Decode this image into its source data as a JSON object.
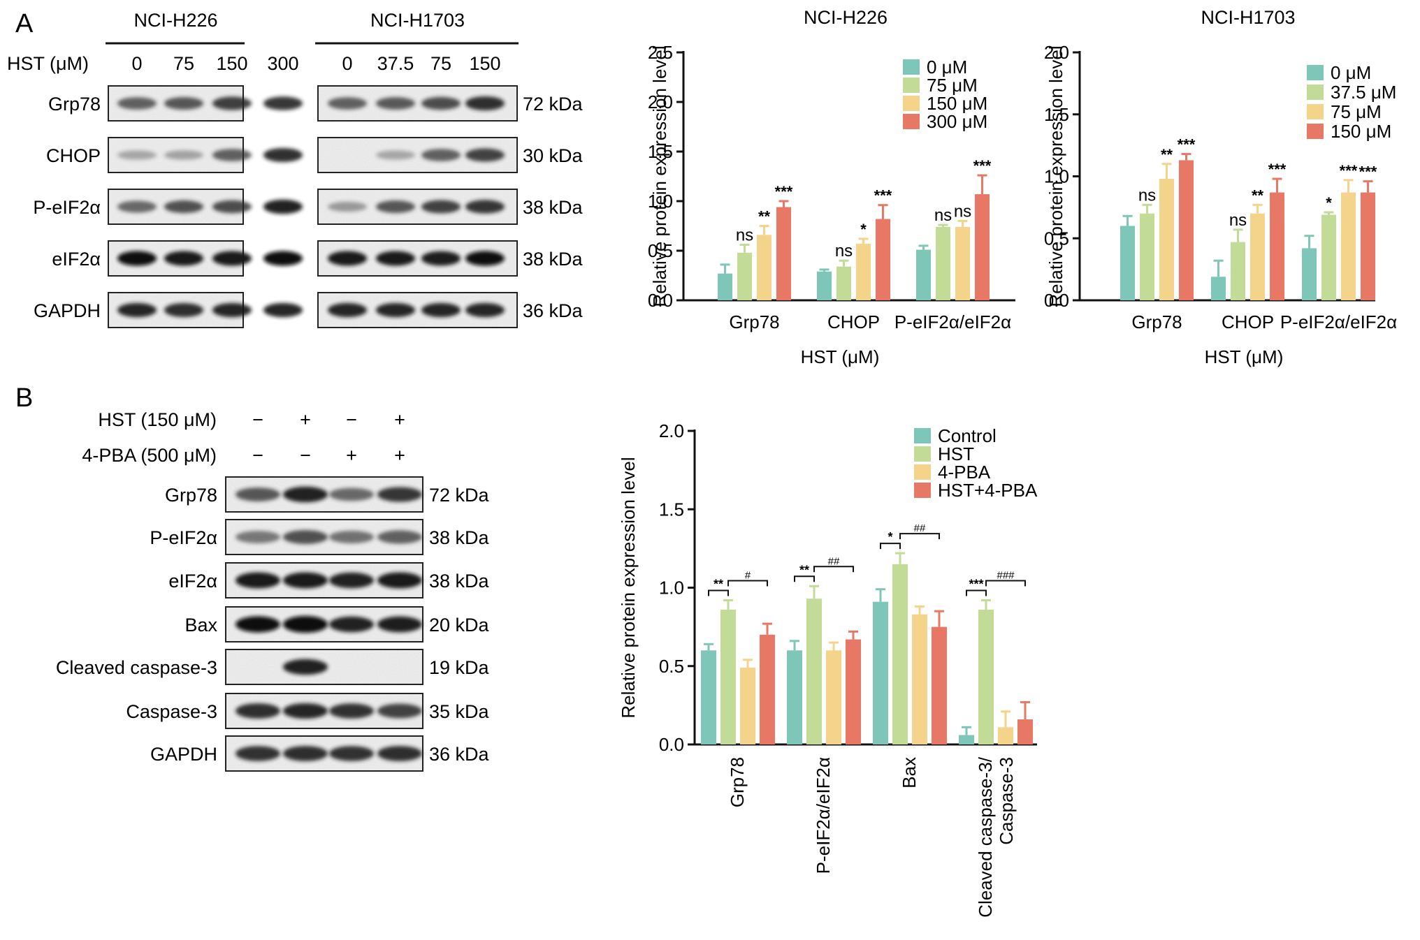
{
  "panelA": {
    "label": "A",
    "blot": {
      "cell_lines": [
        "NCI-H226",
        "NCI-H1703"
      ],
      "treatment_label": "HST (μM)",
      "doses_h226": [
        "0",
        "75",
        "150",
        "300"
      ],
      "doses_h1703": [
        "0",
        "37.5",
        "75",
        "150"
      ],
      "rows": [
        {
          "name": "Grp78",
          "kda": "72 kDa"
        },
        {
          "name": "CHOP",
          "kda": "30 kDa"
        },
        {
          "name": "P-eIF2α",
          "kda": "38 kDa"
        },
        {
          "name": "eIF2α",
          "kda": "38 kDa"
        },
        {
          "name": "GAPDH",
          "kda": "36 kDa"
        }
      ]
    }
  },
  "panelB": {
    "label": "B",
    "blot": {
      "treatments": [
        {
          "label": "HST (150 μM)",
          "signs": [
            "−",
            "+",
            "−",
            "+"
          ]
        },
        {
          "label": "4-PBA (500 μM)",
          "signs": [
            "−",
            "−",
            "+",
            "+"
          ]
        }
      ],
      "rows": [
        {
          "name": "Grp78",
          "kda": "72 kDa"
        },
        {
          "name": "P-eIF2α",
          "kda": "38 kDa"
        },
        {
          "name": "eIF2α",
          "kda": "38 kDa"
        },
        {
          "name": "Bax",
          "kda": "20 kDa"
        },
        {
          "name": "Cleaved caspase-3",
          "kda": "19 kDa"
        },
        {
          "name": "Caspase-3",
          "kda": "35 kDa"
        },
        {
          "name": "GAPDH",
          "kda": "36 kDa"
        }
      ]
    }
  },
  "chart_data": [
    {
      "type": "bar",
      "title": "NCI-H226",
      "xlabel": "HST (μM)",
      "ylabel": "Relative protein expression level",
      "ylim": [
        0,
        2.5
      ],
      "yticks": [
        "0.0",
        "0.5",
        "1.0",
        "1.5",
        "2.0",
        "2.5"
      ],
      "categories": [
        "Grp78",
        "CHOP",
        "P-eIF2α/eIF2α"
      ],
      "legend_position": "top-right",
      "series": [
        {
          "name": "0 μM",
          "color": "#7ec6b7",
          "values": [
            0.27,
            0.29,
            0.51
          ],
          "errors": [
            0.09,
            0.02,
            0.04
          ]
        },
        {
          "name": "75 μM",
          "color": "#c2dc97",
          "values": [
            0.48,
            0.34,
            0.74
          ],
          "errors": [
            0.08,
            0.06,
            0.02
          ]
        },
        {
          "name": "150 μM",
          "color": "#f4d38b",
          "values": [
            0.66,
            0.57,
            0.74
          ],
          "errors": [
            0.09,
            0.05,
            0.06
          ]
        },
        {
          "name": "300 μM",
          "color": "#e77866",
          "values": [
            0.94,
            0.82,
            1.07
          ],
          "errors": [
            0.06,
            0.14,
            0.19
          ]
        }
      ],
      "annotations": [
        [
          "",
          "ns",
          "**",
          "***"
        ],
        [
          "",
          "ns",
          "*",
          "***"
        ],
        [
          "",
          "ns",
          "ns",
          "***"
        ]
      ]
    },
    {
      "type": "bar",
      "title": "NCI-H1703",
      "xlabel": "HST (μM)",
      "ylabel": "Relative protein expression level",
      "ylim": [
        0,
        2.0
      ],
      "yticks": [
        "0.0",
        "0.5",
        "1.0",
        "1.5",
        "2.0"
      ],
      "categories": [
        "Grp78",
        "CHOP",
        "P-eIF2α/eIF2α"
      ],
      "legend_position": "top-right",
      "series": [
        {
          "name": "0 μM",
          "color": "#7ec6b7",
          "values": [
            0.6,
            0.19,
            0.42
          ],
          "errors": [
            0.08,
            0.13,
            0.1
          ]
        },
        {
          "name": "37.5 μM",
          "color": "#c2dc97",
          "values": [
            0.7,
            0.47,
            0.69
          ],
          "errors": [
            0.07,
            0.1,
            0.02
          ]
        },
        {
          "name": "75 μM",
          "color": "#f4d38b",
          "values": [
            0.98,
            0.7,
            0.87
          ],
          "errors": [
            0.12,
            0.07,
            0.1
          ]
        },
        {
          "name": "150 μM",
          "color": "#e77866",
          "values": [
            1.13,
            0.87,
            0.87
          ],
          "errors": [
            0.05,
            0.11,
            0.09
          ]
        }
      ],
      "annotations": [
        [
          "",
          "ns",
          "**",
          "***"
        ],
        [
          "",
          "ns",
          "**",
          "***"
        ],
        [
          "",
          "*",
          "***",
          "***"
        ]
      ]
    },
    {
      "type": "bar",
      "title": "",
      "xlabel": "",
      "ylabel": "Relative protein expression level",
      "ylim": [
        0,
        2.0
      ],
      "yticks": [
        "0.0",
        "0.5",
        "1.0",
        "1.5",
        "2.0"
      ],
      "categories": [
        "Grp78",
        "P-eIF2α/eIF2α",
        "Bax",
        "Cleaved caspase-3/ Caspase-3"
      ],
      "legend_position": "top-right",
      "series": [
        {
          "name": "Control",
          "color": "#7ec6b7",
          "values": [
            0.6,
            0.6,
            0.91,
            0.06
          ],
          "errors": [
            0.04,
            0.06,
            0.08,
            0.05
          ]
        },
        {
          "name": "HST",
          "color": "#c2dc97",
          "values": [
            0.86,
            0.93,
            1.15,
            0.86
          ],
          "errors": [
            0.06,
            0.08,
            0.07,
            0.06
          ]
        },
        {
          "name": "4-PBA",
          "color": "#f4d38b",
          "values": [
            0.49,
            0.6,
            0.83,
            0.11
          ],
          "errors": [
            0.05,
            0.05,
            0.05,
            0.1
          ]
        },
        {
          "name": "HST+4-PBA",
          "color": "#e77866",
          "values": [
            0.7,
            0.67,
            0.75,
            0.16
          ],
          "errors": [
            0.07,
            0.05,
            0.1,
            0.11
          ]
        }
      ],
      "significance": [
        {
          "category": 0,
          "left": "**",
          "right": "#"
        },
        {
          "category": 1,
          "left": "**",
          "right": "##"
        },
        {
          "category": 2,
          "left": "*",
          "right": "##"
        },
        {
          "category": 3,
          "left": "***",
          "right": "###"
        }
      ]
    }
  ]
}
